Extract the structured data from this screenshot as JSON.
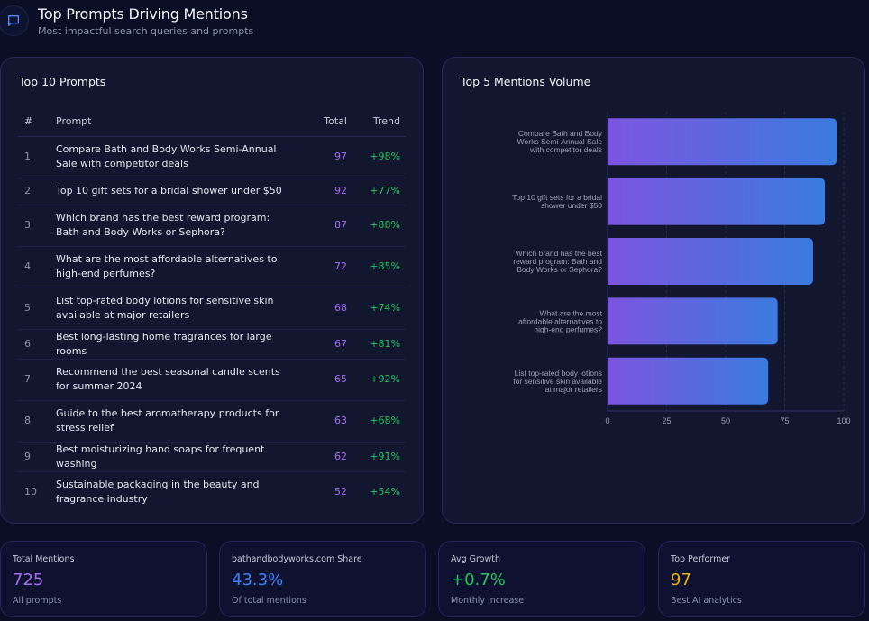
{
  "header": {
    "icon": "message-square-icon",
    "title": "Top Prompts Driving Mentions",
    "subtitle": "Most impactful search queries and prompts"
  },
  "table": {
    "title": "Top 10 Prompts",
    "columns": [
      "#",
      "Prompt",
      "Total",
      "Trend"
    ],
    "rows": [
      {
        "rank": "1",
        "prompt": "Compare Bath and Body Works Semi-Annual Sale with competitor deals",
        "total": "97",
        "trend": "+98%"
      },
      {
        "rank": "2",
        "prompt": "Top 10 gift sets for a bridal shower under $50",
        "total": "92",
        "trend": "+77%"
      },
      {
        "rank": "3",
        "prompt": "Which brand has the best reward program: Bath and Body Works or Sephora?",
        "total": "87",
        "trend": "+88%"
      },
      {
        "rank": "4",
        "prompt": "What are the most affordable alternatives to high-end perfumes?",
        "total": "72",
        "trend": "+85%"
      },
      {
        "rank": "5",
        "prompt": "List top-rated body lotions for sensitive skin available at major retailers",
        "total": "68",
        "trend": "+74%"
      },
      {
        "rank": "6",
        "prompt": "Best long-lasting home fragrances for large rooms",
        "total": "67",
        "trend": "+81%"
      },
      {
        "rank": "7",
        "prompt": "Recommend the best seasonal candle scents for summer 2024",
        "total": "65",
        "trend": "+92%"
      },
      {
        "rank": "8",
        "prompt": "Guide to the best aromatherapy products for stress relief",
        "total": "63",
        "trend": "+68%"
      },
      {
        "rank": "9",
        "prompt": "Best moisturizing hand soaps for frequent washing",
        "total": "62",
        "trend": "+91%"
      },
      {
        "rank": "10",
        "prompt": "Sustainable packaging in the beauty and fragrance industry",
        "total": "52",
        "trend": "+54%"
      }
    ]
  },
  "chart_data": {
    "type": "bar",
    "orientation": "horizontal",
    "title": "Top 5 Mentions Volume",
    "categories": [
      [
        "Compare Bath and Body",
        "Works Semi-Annual Sale",
        "with competitor deals"
      ],
      [
        "Top 10 gift sets for a bridal",
        "shower under $50"
      ],
      [
        "Which brand has the best",
        "reward program: Bath and",
        "Body Works or Sephora?"
      ],
      [
        "What are the most",
        "affordable alternatives to",
        "high-end perfumes?"
      ],
      [
        "List top-rated body lotions",
        "for sensitive skin available",
        "at major retailers"
      ]
    ],
    "values": [
      97,
      92,
      87,
      72,
      68
    ],
    "xlim": [
      0,
      100
    ],
    "xticks": [
      0,
      25,
      50,
      75,
      100
    ],
    "xlabel": "",
    "ylabel": "",
    "grid": true,
    "gradient": [
      "#7c55e0",
      "#3b7be0"
    ]
  },
  "stats": [
    {
      "label": "Total Mentions",
      "value": "725",
      "sub": "All prompts",
      "color": "#a56ef0"
    },
    {
      "label": "bathandbodyworks.com Share",
      "value": "43.3%",
      "sub": "Of total mentions",
      "color": "#3b82f6"
    },
    {
      "label": "Avg Growth",
      "value": "+0.7%",
      "sub": "Monthly increase",
      "color": "#22c55e"
    },
    {
      "label": "Top Performer",
      "value": "97",
      "sub": "Best AI analytics",
      "color": "#eab308"
    }
  ]
}
